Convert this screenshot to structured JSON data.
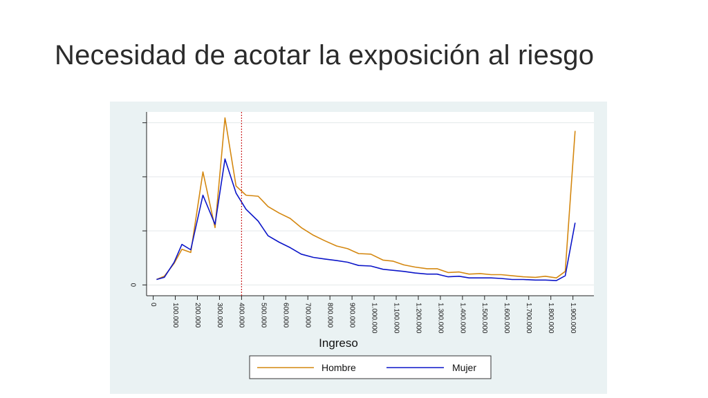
{
  "slide": {
    "title": "Necesidad de acotar la exposición al riesgo"
  },
  "colors": {
    "hombre": "#d4870f",
    "mujer": "#0a14c8",
    "reference_line": "#cc2222",
    "plot_bg": "#ffffff",
    "frame_bg": "#eaf2f3",
    "grid": "#e3e8ea"
  },
  "chart_data": {
    "type": "line",
    "title": "",
    "xlabel": "Ingreso",
    "ylabel": "",
    "xlim": [
      -30000,
      1995000
    ],
    "ylim": [
      -0.2,
      3.2
    ],
    "x_ticks": [
      0,
      100000,
      200000,
      300000,
      400000,
      500000,
      600000,
      700000,
      800000,
      900000,
      1000000,
      1100000,
      1200000,
      1300000,
      1400000,
      1500000,
      1600000,
      1700000,
      1800000,
      1900000
    ],
    "x_tick_labels": [
      "0",
      "100.000",
      "200.000",
      "300.000",
      "400.000",
      "500.000",
      "600.000",
      "700.000",
      "800.000",
      "900.000",
      "1.000.000",
      "1.100.000",
      "1.200.000",
      "1.300.000",
      "1.400.000",
      "1.500.000",
      "1.600.000",
      "1.700.000",
      "1.800.000",
      "1.900.000"
    ],
    "y_ticks": [
      0,
      1,
      2,
      3
    ],
    "y_tick_labels": [
      "0",
      "",
      "",
      ""
    ],
    "reference_line_x": 400000,
    "grid": true,
    "legend_position": "bottom",
    "x": [
      15000,
      50000,
      95000,
      130000,
      170000,
      225000,
      280000,
      325000,
      375000,
      420000,
      475000,
      520000,
      570000,
      620000,
      670000,
      725000,
      775000,
      830000,
      880000,
      930000,
      985000,
      1040000,
      1085000,
      1135000,
      1185000,
      1240000,
      1285000,
      1335000,
      1385000,
      1430000,
      1480000,
      1530000,
      1575000,
      1625000,
      1675000,
      1730000,
      1775000,
      1825000,
      1865000,
      1910000
    ],
    "series": [
      {
        "name": "Hombre",
        "values": [
          0.1,
          0.16,
          0.4,
          0.66,
          0.6,
          2.09,
          1.06,
          3.09,
          1.83,
          1.66,
          1.64,
          1.45,
          1.33,
          1.23,
          1.06,
          0.92,
          0.82,
          0.72,
          0.67,
          0.58,
          0.57,
          0.46,
          0.44,
          0.37,
          0.33,
          0.3,
          0.3,
          0.23,
          0.24,
          0.2,
          0.21,
          0.19,
          0.19,
          0.17,
          0.15,
          0.14,
          0.16,
          0.13,
          0.25,
          2.85
        ]
      },
      {
        "name": "Mujer",
        "values": [
          0.1,
          0.14,
          0.42,
          0.75,
          0.65,
          1.66,
          1.12,
          2.33,
          1.7,
          1.4,
          1.18,
          0.91,
          0.79,
          0.69,
          0.57,
          0.51,
          0.48,
          0.45,
          0.42,
          0.36,
          0.35,
          0.29,
          0.27,
          0.25,
          0.22,
          0.2,
          0.2,
          0.15,
          0.16,
          0.13,
          0.13,
          0.13,
          0.12,
          0.1,
          0.1,
          0.09,
          0.09,
          0.08,
          0.17,
          1.15
        ]
      }
    ]
  }
}
